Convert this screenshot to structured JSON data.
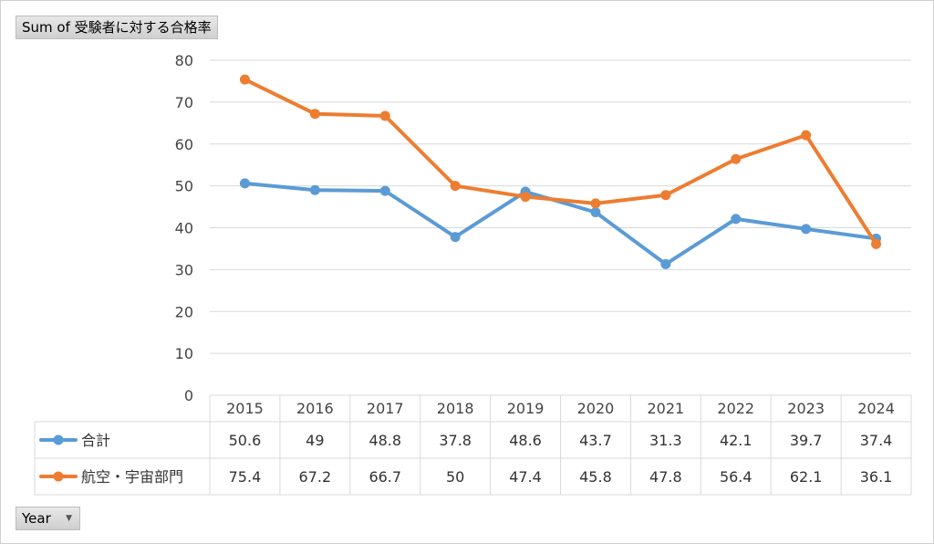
{
  "pivot": {
    "value_field": "Sum of 受験者に対する合格率",
    "axis_field": "Year",
    "axis_dropdown_icon": "dropdown-arrow-icon"
  },
  "chart_data": {
    "type": "line",
    "title": "",
    "xlabel": "",
    "ylabel": "",
    "categories": [
      "2015",
      "2016",
      "2017",
      "2018",
      "2019",
      "2020",
      "2021",
      "2022",
      "2023",
      "2024"
    ],
    "ylim": [
      0,
      80
    ],
    "yticks": [
      "0",
      "10",
      "20",
      "30",
      "40",
      "50",
      "60",
      "70",
      "80"
    ],
    "grid": true,
    "legend_placement": "data-table",
    "series": [
      {
        "name": "合計",
        "color": "#5b9bd5",
        "values": [
          50.6,
          49,
          48.8,
          37.8,
          48.6,
          43.7,
          31.3,
          42.1,
          39.7,
          37.4
        ],
        "labels": [
          "50.6",
          "49",
          "48.8",
          "37.8",
          "48.6",
          "43.7",
          "31.3",
          "42.1",
          "39.7",
          "37.4"
        ]
      },
      {
        "name": "航空・宇宙部門",
        "color": "#ed7d31",
        "values": [
          75.4,
          67.2,
          66.7,
          50,
          47.4,
          45.8,
          47.8,
          56.4,
          62.1,
          36.1
        ],
        "labels": [
          "75.4",
          "67.2",
          "66.7",
          "50",
          "47.4",
          "45.8",
          "47.8",
          "56.4",
          "62.1",
          "36.1"
        ]
      }
    ]
  }
}
